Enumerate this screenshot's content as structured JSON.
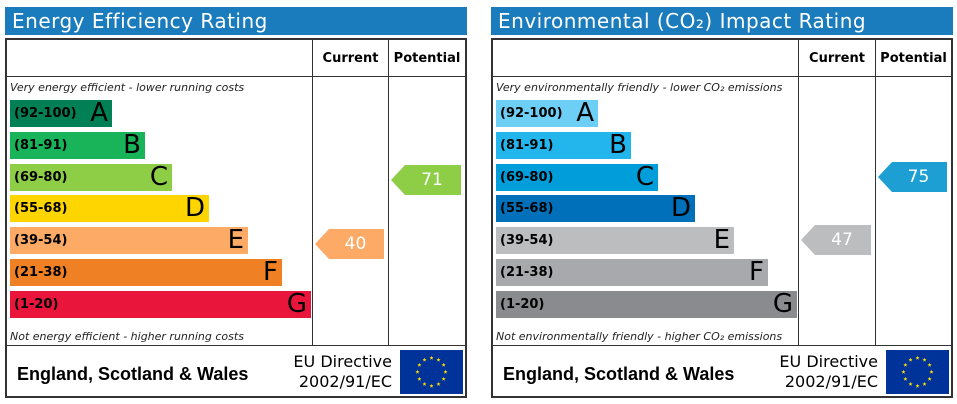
{
  "chart_data": [
    {
      "type": "bar",
      "title": "Energy Efficiency Rating",
      "columns": [
        "Current",
        "Potential"
      ],
      "top_note": "Very energy efficient - lower running costs",
      "bottom_note": "Not energy efficient - higher running costs",
      "bands": [
        {
          "range": "(92-100)",
          "letter": "A",
          "color": "#008054",
          "text_color": "#000000"
        },
        {
          "range": "(81-91)",
          "letter": "B",
          "color": "#19b459",
          "text_color": "#000000"
        },
        {
          "range": "(69-80)",
          "letter": "C",
          "color": "#8dce46",
          "text_color": "#000000"
        },
        {
          "range": "(55-68)",
          "letter": "D",
          "color": "#ffd500",
          "text_color": "#000000"
        },
        {
          "range": "(39-54)",
          "letter": "E",
          "color": "#fcaa65",
          "text_color": "#000000"
        },
        {
          "range": "(21-38)",
          "letter": "F",
          "color": "#ef8023",
          "text_color": "#000000"
        },
        {
          "range": "(1-20)",
          "letter": "G",
          "color": "#e9153b",
          "text_color": "#000000"
        }
      ],
      "current": {
        "value": 40,
        "band": "E",
        "color": "#fcaa65"
      },
      "potential": {
        "value": 71,
        "band": "C",
        "color": "#8dce46"
      },
      "footer_country": "England, Scotland & Wales",
      "footer_directive_line1": "EU Directive",
      "footer_directive_line2": "2002/91/EC"
    },
    {
      "type": "bar",
      "title": "Environmental (CO₂) Impact Rating",
      "columns": [
        "Current",
        "Potential"
      ],
      "top_note": "Very environmentally friendly - lower CO₂ emissions",
      "bottom_note": "Not environmentally friendly - higher CO₂ emissions",
      "bands": [
        {
          "range": "(92-100)",
          "letter": "A",
          "color": "#6dcff6",
          "text_color": "#000000"
        },
        {
          "range": "(81-91)",
          "letter": "B",
          "color": "#22b6ed",
          "text_color": "#000000"
        },
        {
          "range": "(69-80)",
          "letter": "C",
          "color": "#009ddb",
          "text_color": "#000000"
        },
        {
          "range": "(55-68)",
          "letter": "D",
          "color": "#0070bb",
          "text_color": "#000000"
        },
        {
          "range": "(39-54)",
          "letter": "E",
          "color": "#bbbdbf",
          "text_color": "#000000"
        },
        {
          "range": "(21-38)",
          "letter": "F",
          "color": "#a7a9ac",
          "text_color": "#000000"
        },
        {
          "range": "(1-20)",
          "letter": "G",
          "color": "#898b8e",
          "text_color": "#000000"
        }
      ],
      "current": {
        "value": 47,
        "band": "E",
        "color": "#bbbdbf"
      },
      "potential": {
        "value": 75,
        "band": "C",
        "color": "#1e9fd4"
      },
      "footer_country": "England, Scotland & Wales",
      "footer_directive_line1": "EU Directive",
      "footer_directive_line2": "2002/91/EC"
    }
  ]
}
